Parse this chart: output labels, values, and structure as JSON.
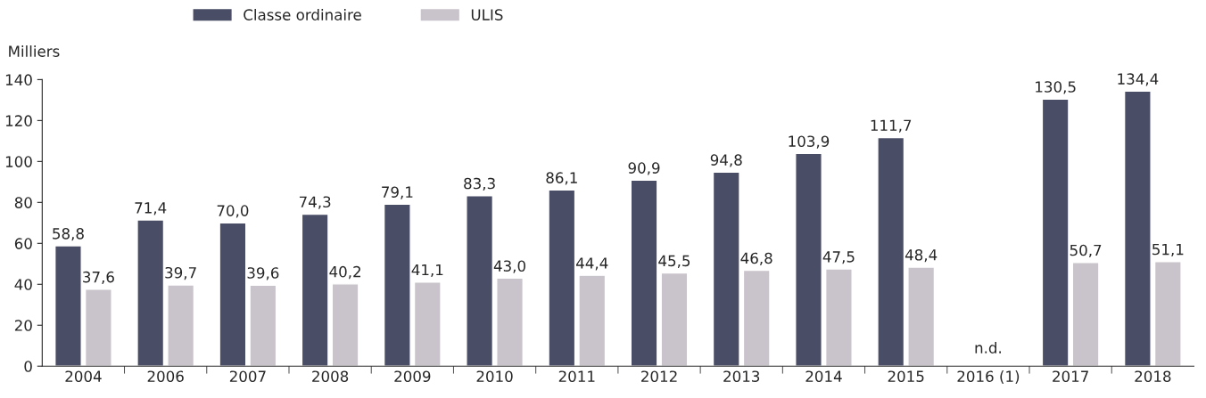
{
  "chart_data": {
    "type": "bar",
    "categories": [
      "2004",
      "2006",
      "2007",
      "2008",
      "2009",
      "2010",
      "2011",
      "2012",
      "2013",
      "2014",
      "2015",
      "2016 (1)",
      "2017",
      "2018"
    ],
    "ylabel": "Milliers",
    "ylim": [
      0,
      140
    ],
    "yticks": [
      0,
      20,
      40,
      60,
      80,
      100,
      120,
      140
    ],
    "series": [
      {
        "name": "Classe ordinaire",
        "color": "#4a4d66",
        "values": [
          58.8,
          71.4,
          70.0,
          74.3,
          79.1,
          83.3,
          86.1,
          90.9,
          94.8,
          103.9,
          111.7,
          null,
          130.5,
          134.4
        ],
        "value_labels": [
          "58,8",
          "71,4",
          "70,0",
          "74,3",
          "79,1",
          "83,3",
          "86,1",
          "90,9",
          "94,8",
          "103,9",
          "111,7",
          null,
          "130,5",
          "134,4"
        ]
      },
      {
        "name": "ULIS",
        "color": "#c9c3cb",
        "values": [
          37.6,
          39.7,
          39.6,
          40.2,
          41.1,
          43.0,
          44.4,
          45.5,
          46.8,
          47.5,
          48.4,
          null,
          50.7,
          51.1
        ],
        "value_labels": [
          "37,6",
          "39,7",
          "39,6",
          "40,2",
          "41,1",
          "43,0",
          "44,4",
          "45,5",
          "46,8",
          "47,5",
          "48,4",
          null,
          "50,7",
          "51,1"
        ]
      }
    ],
    "annotations": [
      "n.d."
    ],
    "legend": "top left",
    "grid": false
  }
}
